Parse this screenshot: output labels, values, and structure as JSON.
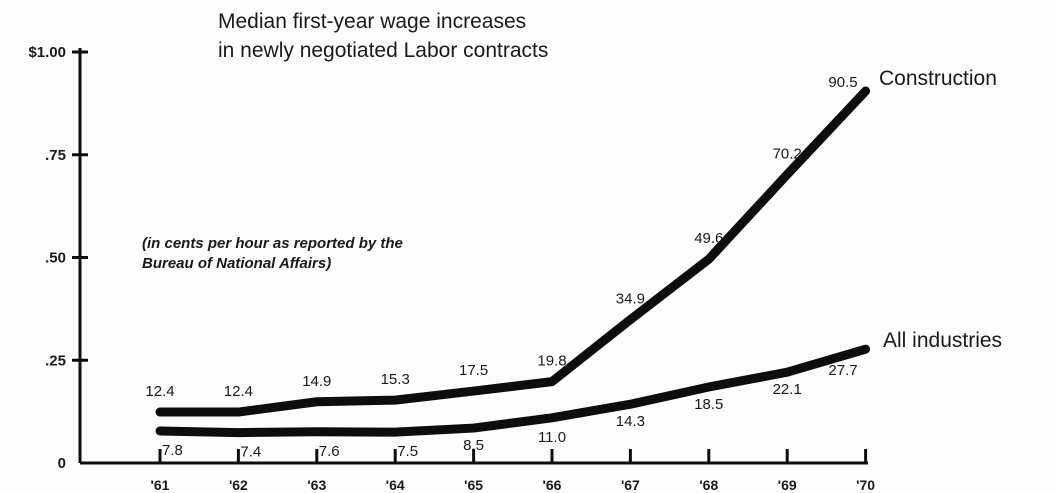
{
  "chart_data": {
    "type": "line",
    "title": [
      "Median first-year wage increases",
      "in newly negotiated Labor contracts"
    ],
    "note": [
      "(in cents per hour as reported by the",
      "Bureau of National Affairs)"
    ],
    "categories": [
      "'61",
      "'62",
      "'63",
      "'64",
      "'65",
      "'66",
      "'67",
      "'68",
      "'69",
      "'70"
    ],
    "y_ticks": [
      {
        "value": 0,
        "label": "0"
      },
      {
        "value": 0.25,
        "label": ".25"
      },
      {
        "value": 0.5,
        "label": ".50"
      },
      {
        "value": 0.75,
        "label": ".75"
      },
      {
        "value": 1.0,
        "label": "$1.00"
      }
    ],
    "ylim": [
      0,
      1.0
    ],
    "grid": false,
    "series": [
      {
        "name": "Construction",
        "values": [
          0.124,
          0.124,
          0.149,
          0.153,
          0.175,
          0.198,
          0.349,
          0.496,
          0.702,
          0.905
        ],
        "labels": [
          "12.4",
          "12.4",
          "14.9",
          "15.3",
          "17.5",
          "19.8",
          "34.9",
          "49.6",
          "70.2",
          "90.5"
        ]
      },
      {
        "name": "All industries",
        "values": [
          0.078,
          0.074,
          0.076,
          0.075,
          0.085,
          0.11,
          0.143,
          0.185,
          0.221,
          0.277
        ],
        "labels": [
          "7.8",
          "7.4",
          "7.6",
          "7.5",
          "8.5",
          "11.0",
          "14.3",
          "18.5",
          "22.1",
          "27.7"
        ]
      }
    ]
  }
}
